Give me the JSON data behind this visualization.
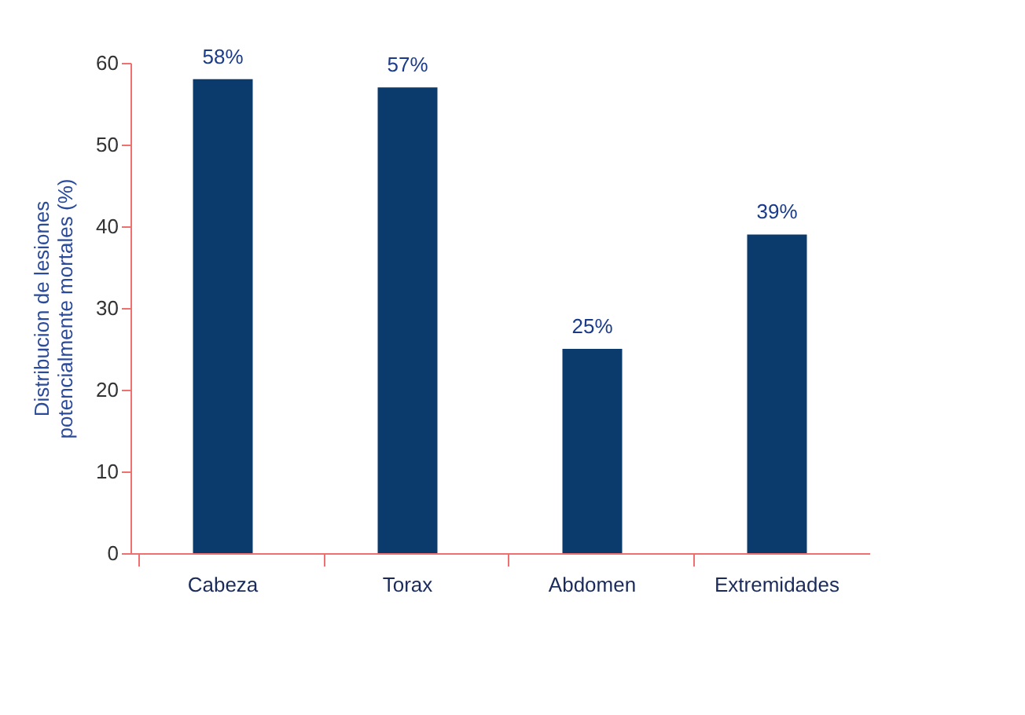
{
  "chart_data": {
    "type": "bar",
    "ylabel": "Distribucion de lesiones\npotencialmente mortales (%)",
    "categories": [
      "Cabeza",
      "Torax",
      "Abdomen",
      "Extremidades"
    ],
    "values": [
      58,
      57,
      25,
      39
    ],
    "value_labels": [
      "58%",
      "57%",
      "25%",
      "39%"
    ],
    "color": "#0b3a6c",
    "ylim": [
      0,
      60
    ],
    "yticks": [
      0,
      10,
      20,
      30,
      40,
      50,
      60
    ],
    "grid": false
  }
}
